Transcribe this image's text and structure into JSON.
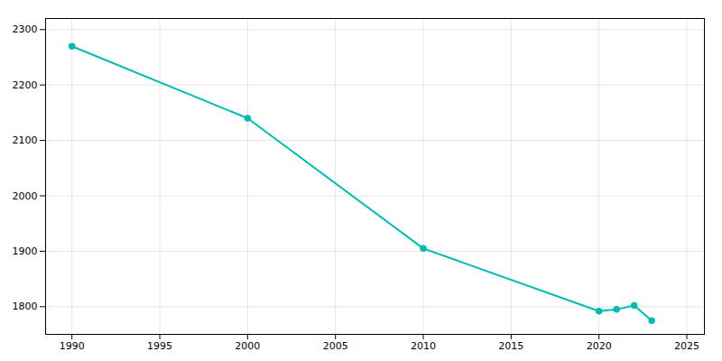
{
  "chart_data": {
    "type": "line",
    "x": [
      1990,
      2000,
      2010,
      2020,
      2021,
      2022,
      2023
    ],
    "values": [
      2270,
      2140,
      1905,
      1792,
      1795,
      1802,
      1775
    ],
    "color": "#00bbb4",
    "marker": "circle",
    "xlim": [
      1988.5,
      2026
    ],
    "ylim": [
      1750,
      2320
    ],
    "xticks": [
      1990,
      1995,
      2000,
      2005,
      2010,
      2015,
      2020,
      2025
    ],
    "yticks": [
      1800,
      1900,
      2000,
      2100,
      2200,
      2300
    ],
    "grid": true
  }
}
